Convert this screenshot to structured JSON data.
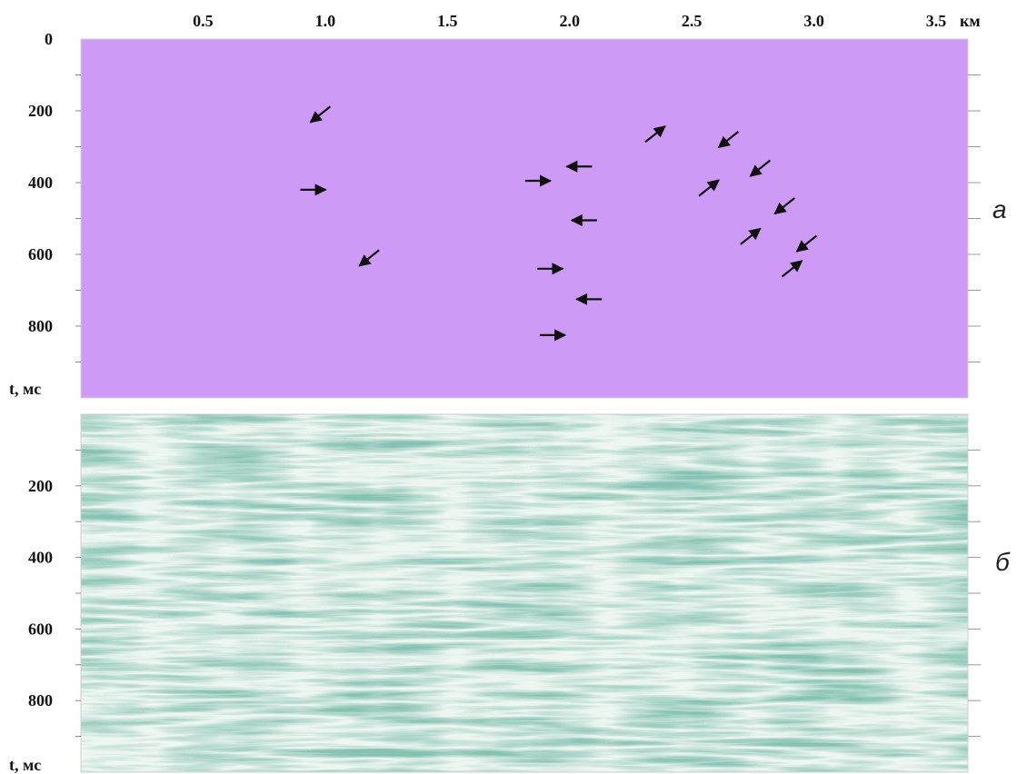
{
  "figure": {
    "x_axis": {
      "ticks": [
        "0.5",
        "1.0",
        "1.5",
        "2.0",
        "2.5",
        "3.0",
        "3.5"
      ],
      "unit": "км",
      "range": [
        0,
        3.63
      ]
    },
    "panel_a": {
      "label": "а",
      "time_axis_title": "t, мс",
      "time_ticks": [
        "0",
        "200",
        "400",
        "600",
        "800"
      ],
      "time_range": [
        0,
        1000
      ],
      "palette": [
        "#f5398a",
        "#ff6fb0",
        "#f4f46a",
        "#aef25c",
        "#7ddde0",
        "#9fb0ff",
        "#9a55ea",
        "#c08cff"
      ],
      "arrows": [
        {
          "x": 0.98,
          "t": 210,
          "dir": "left-down"
        },
        {
          "x": 0.95,
          "t": 420,
          "dir": "right"
        },
        {
          "x": 1.18,
          "t": 610,
          "dir": "left-down"
        },
        {
          "x": 1.87,
          "t": 395,
          "dir": "right"
        },
        {
          "x": 2.04,
          "t": 355,
          "dir": "left"
        },
        {
          "x": 2.06,
          "t": 505,
          "dir": "left"
        },
        {
          "x": 1.92,
          "t": 640,
          "dir": "right"
        },
        {
          "x": 2.08,
          "t": 725,
          "dir": "left"
        },
        {
          "x": 1.93,
          "t": 825,
          "dir": "right"
        },
        {
          "x": 2.35,
          "t": 265,
          "dir": "right-up"
        },
        {
          "x": 2.65,
          "t": 280,
          "dir": "left-down"
        },
        {
          "x": 2.78,
          "t": 360,
          "dir": "left-down"
        },
        {
          "x": 2.57,
          "t": 415,
          "dir": "right-up"
        },
        {
          "x": 2.88,
          "t": 465,
          "dir": "left-down"
        },
        {
          "x": 2.74,
          "t": 550,
          "dir": "right-up"
        },
        {
          "x": 2.97,
          "t": 570,
          "dir": "left-down"
        },
        {
          "x": 2.91,
          "t": 640,
          "dir": "right-up"
        }
      ]
    },
    "panel_b": {
      "label": "б",
      "time_axis_title": "t, мс",
      "time_ticks": [
        "200",
        "400",
        "600",
        "800"
      ],
      "time_range": [
        0,
        1000
      ],
      "trace_color": "#3c8a72",
      "background_color": "#eef6f1"
    }
  }
}
